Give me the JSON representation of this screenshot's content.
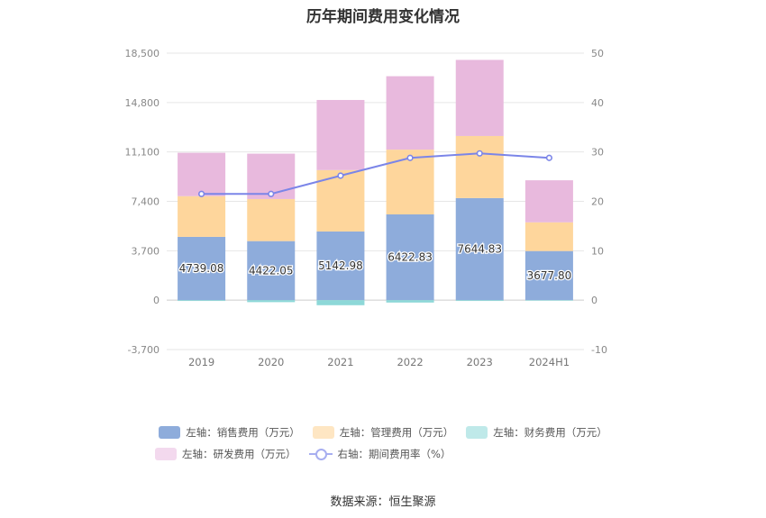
{
  "title": "历年期间费用变化情况",
  "source": "数据来源：恒生聚源",
  "chart_data": {
    "type": "bar",
    "stacked": true,
    "categories": [
      "2019",
      "2020",
      "2021",
      "2022",
      "2023",
      "2024H1"
    ],
    "left_axis": {
      "min": -3700,
      "max": 18500,
      "ticks": [
        -3700,
        0,
        3700,
        7400,
        11100,
        14800,
        18500
      ],
      "tick_labels": [
        "-3,700",
        "0",
        "3,700",
        "7,400",
        "11,100",
        "14,800",
        "18,500"
      ]
    },
    "right_axis": {
      "min": -10,
      "max": 50,
      "ticks": [
        -10,
        0,
        10,
        20,
        30,
        40,
        50
      ],
      "tick_labels": [
        "-10",
        "0",
        "10",
        "20",
        "30",
        "40",
        "50"
      ]
    },
    "grid": true,
    "legend_position": "bottom",
    "series": [
      {
        "name": "左轴：销售费用（万元）",
        "kind": "bar",
        "color": "#8eacdb",
        "values": [
          4739.08,
          4422.05,
          5142.98,
          6422.83,
          7644.83,
          3677.8
        ],
        "labels": [
          "4739.08",
          "4422.05",
          "5142.98",
          "6422.83",
          "7644.83",
          "3677.80"
        ]
      },
      {
        "name": "左轴：管理费用（万元）",
        "kind": "bar",
        "color": "#fed69c",
        "values": [
          3050,
          3150,
          4600,
          4850,
          4650,
          2150
        ]
      },
      {
        "name": "左轴：财务费用（万元）",
        "kind": "bar",
        "color": "#8dd8d8",
        "values": [
          -60,
          -150,
          -380,
          -180,
          -60,
          -40
        ]
      },
      {
        "name": "左轴：研发费用（万元）",
        "kind": "bar",
        "color": "#e8b9dd",
        "values": [
          3250,
          3400,
          5250,
          5500,
          5700,
          3150
        ]
      },
      {
        "name": "右轴：期间费用率（%）",
        "kind": "line",
        "color": "#7b85e8",
        "values": [
          21.5,
          21.5,
          25.2,
          28.8,
          29.7,
          28.8
        ]
      }
    ]
  }
}
